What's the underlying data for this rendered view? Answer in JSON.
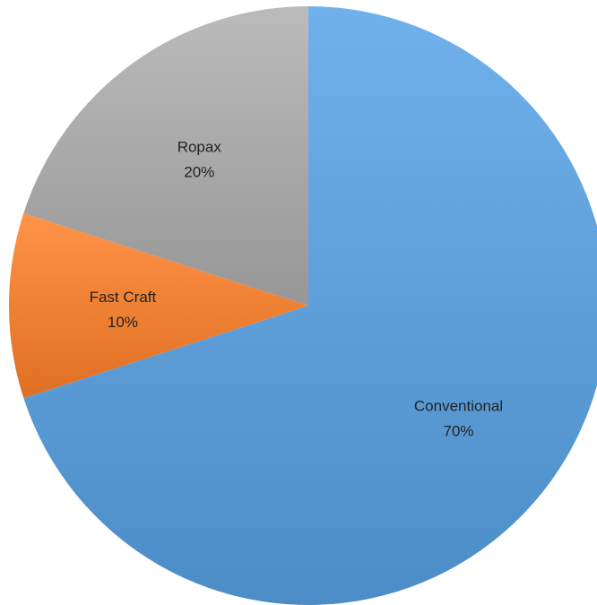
{
  "chart_data": {
    "type": "pie",
    "title": "",
    "slices": [
      {
        "label": "Conventional",
        "value": 70,
        "percent_label": "70%",
        "color": "#5B9BD5"
      },
      {
        "label": "Fast Craft",
        "value": 10,
        "percent_label": "10%",
        "color": "#ED7D31"
      },
      {
        "label": "Ropax",
        "value": 20,
        "percent_label": "20%",
        "color": "#A5A5A5"
      }
    ],
    "start_angle_deg": 0,
    "direction": "clockwise",
    "legend": "none",
    "data_labels": "inside"
  }
}
